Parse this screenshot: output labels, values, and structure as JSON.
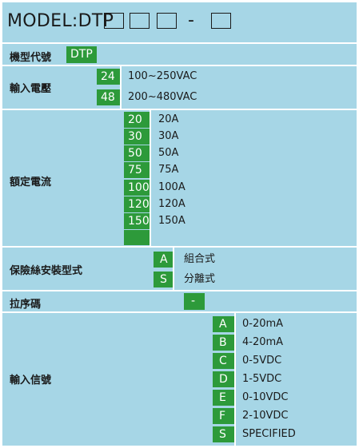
{
  "model": {
    "prefix": "MODEL:DTP",
    "dash": "-"
  },
  "colors": {
    "background": "#a6d6e6",
    "code_bg": "#2d9a3a",
    "divider": "#ffffff"
  },
  "model_code": {
    "label": "機型代號",
    "code": "DTP"
  },
  "input_voltage": {
    "label": "輸入電壓",
    "options": [
      {
        "code": "24",
        "desc": "100~250VAC"
      },
      {
        "code": "48",
        "desc": "200~480VAC"
      }
    ]
  },
  "rated_current": {
    "label": "額定電流",
    "options": [
      {
        "code": "20",
        "desc": "20A"
      },
      {
        "code": "30",
        "desc": "30A"
      },
      {
        "code": "50",
        "desc": "50A"
      },
      {
        "code": "75",
        "desc": "75A"
      },
      {
        "code": "100",
        "desc": "100A"
      },
      {
        "code": "120",
        "desc": "120A"
      },
      {
        "code": "150",
        "desc": "150A"
      }
    ]
  },
  "fuse_type": {
    "label": "保險絲安裝型式",
    "options": [
      {
        "code": "A",
        "desc": "組合式"
      },
      {
        "code": "S",
        "desc": "分離式"
      }
    ]
  },
  "dash_code": {
    "label": "拉序碼",
    "code": "-"
  },
  "input_signal": {
    "label": "輸入信號",
    "options": [
      {
        "code": "A",
        "desc": "0-20mA"
      },
      {
        "code": "B",
        "desc": "4-20mA"
      },
      {
        "code": "C",
        "desc": "0-5VDC"
      },
      {
        "code": "D",
        "desc": "1-5VDC"
      },
      {
        "code": "E",
        "desc": "0-10VDC"
      },
      {
        "code": "F",
        "desc": "2-10VDC"
      },
      {
        "code": "S",
        "desc": "SPECIFIED"
      }
    ]
  }
}
